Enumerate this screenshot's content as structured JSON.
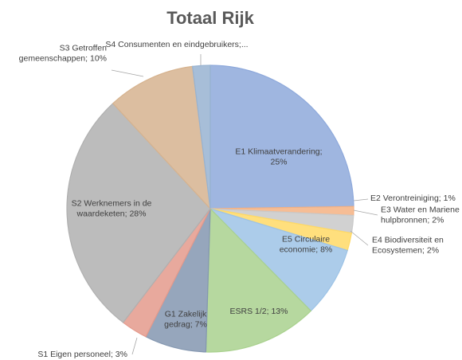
{
  "chart_data": {
    "type": "pie",
    "title": "Totaal Rijk",
    "slices": [
      {
        "label_lines": [
          "E1 Klimaatverandering;",
          "25%"
        ],
        "value": 25,
        "color": "#8ea9db"
      },
      {
        "label_lines": [
          "E2 Verontreiniging; 1%"
        ],
        "value": 1,
        "color": "#f4b183"
      },
      {
        "label_lines": [
          "E3 Water en Mariene",
          "hulpbronnen; 2%"
        ],
        "value": 2,
        "color": "#c9c9c9"
      },
      {
        "label_lines": [
          "E4 Biodiversiteit en",
          "Ecosystemen; 2%"
        ],
        "value": 2,
        "color": "#ffd966"
      },
      {
        "label_lines": [
          "E5 Circulaire",
          "economie; 8%"
        ],
        "value": 8,
        "color": "#9dc3e6"
      },
      {
        "label_lines": [
          "ESRS 1/2; 13%"
        ],
        "value": 13,
        "color": "#a9d18e"
      },
      {
        "label_lines": [
          "G1 Zakelijk",
          "gedrag; 7%"
        ],
        "value": 7,
        "color": "#8497b0"
      },
      {
        "label_lines": [
          "S1 Eigen personeel; 3%"
        ],
        "value": 3,
        "color": "#e49a8c"
      },
      {
        "label_lines": [
          "S2 Werknemers in de",
          "waardeketen; 28%"
        ],
        "value": 28,
        "color": "#b0b0b0"
      },
      {
        "label_lines": [
          "S3 Getroffen",
          "gemeenschappen; 10%"
        ],
        "value": 10,
        "color": "#d6b38f"
      },
      {
        "label_lines": [
          "S4 Consumenten en eindgebruikers;..."
        ],
        "value": 2,
        "color": "#98b3d1"
      }
    ],
    "start_angle": "12 o'clock",
    "direction": "clockwise",
    "legend": "none"
  }
}
